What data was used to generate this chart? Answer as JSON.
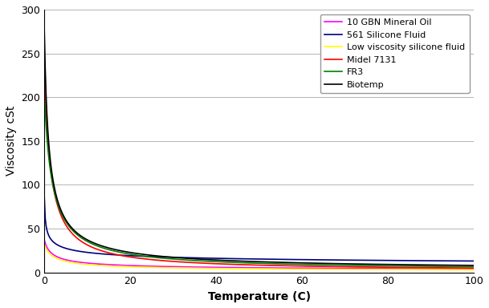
{
  "title": "",
  "xlabel": "Temperature (C)",
  "ylabel": "Viscosity cSt",
  "xlim": [
    0,
    100
  ],
  "ylim": [
    0,
    300
  ],
  "yticks": [
    0,
    50,
    100,
    150,
    200,
    250,
    300
  ],
  "xticks": [
    0,
    20,
    40,
    60,
    80,
    100
  ],
  "series": [
    {
      "label": "10 GBN Mineral Oil",
      "color": "#FF00FF",
      "A": 37.0,
      "B": 1.0,
      "n": 0.55,
      "v100": 4.0
    },
    {
      "label": "561 Silicone Fluid",
      "color": "#000080",
      "A": 85.0,
      "B": 1.0,
      "n": 0.32,
      "v100": 13.0
    },
    {
      "label": "Low viscosity silicone fluid",
      "color": "#FFFF00",
      "A": 32.0,
      "B": 1.0,
      "n": 0.62,
      "v100": 3.0
    },
    {
      "label": "Midel 7131",
      "color": "#FF0000",
      "A": 238.0,
      "B": 1.0,
      "n": 0.98,
      "v100": 5.0
    },
    {
      "label": "FR3",
      "color": "#008000",
      "A": 204.0,
      "B": 1.0,
      "n": 0.92,
      "v100": 6.5
    },
    {
      "label": "Biotemp",
      "color": "#000000",
      "A": 275.0,
      "B": 1.0,
      "n": 0.82,
      "v100": 8.0
    }
  ],
  "background_color": "#ffffff",
  "grid_color": "#aaaaaa",
  "legend_fontsize": 8,
  "axis_fontsize": 10
}
